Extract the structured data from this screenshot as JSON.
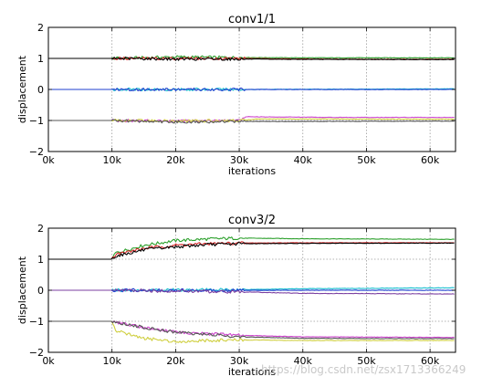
{
  "charts": [
    {
      "title": "conv1/1",
      "xlabel": "iterations",
      "ylabel": "displacement",
      "chart_data": {
        "type": "line",
        "title": "conv1/1",
        "xlabel": "iterations",
        "ylabel": "displacement",
        "xlim": [
          0,
          64000
        ],
        "ylim": [
          -2,
          2
        ],
        "xticks": [
          0,
          10000,
          20000,
          30000,
          40000,
          50000,
          60000
        ],
        "xtick_labels": [
          "0k",
          "10k",
          "20k",
          "30k",
          "40k",
          "50k",
          "60k"
        ],
        "yticks": [
          -2,
          -1,
          0,
          1,
          2
        ],
        "ytick_labels": [
          "−2",
          "−1",
          "0",
          "1",
          "2"
        ],
        "grid": true,
        "series": [
          {
            "color": "#2ca02c",
            "values": [
              [
                0,
                1.0
              ],
              [
                10000,
                1.0
              ],
              [
                20000,
                1.05
              ],
              [
                30000,
                1.03
              ],
              [
                40000,
                1.02
              ],
              [
                50000,
                1.02
              ],
              [
                64000,
                1.02
              ]
            ]
          },
          {
            "color": "#d62728",
            "values": [
              [
                0,
                1.0
              ],
              [
                10000,
                1.0
              ],
              [
                20000,
                1.0
              ],
              [
                30000,
                1.0
              ],
              [
                40000,
                0.98
              ],
              [
                50000,
                0.97
              ],
              [
                64000,
                0.97
              ]
            ]
          },
          {
            "color": "#000000",
            "values": [
              [
                0,
                1.0
              ],
              [
                10000,
                1.0
              ],
              [
                20000,
                0.98
              ],
              [
                30000,
                0.98
              ],
              [
                40000,
                0.97
              ],
              [
                64000,
                0.96
              ]
            ]
          },
          {
            "color": "#17becf",
            "values": [
              [
                0,
                0.0
              ],
              [
                10000,
                0.0
              ],
              [
                30000,
                0.0
              ],
              [
                64000,
                0.02
              ]
            ]
          },
          {
            "color": "#1f3fcf",
            "values": [
              [
                0,
                0.0
              ],
              [
                10000,
                0.0
              ],
              [
                30000,
                0.0
              ],
              [
                64000,
                0.0
              ]
            ]
          },
          {
            "color": "#cc44cc",
            "values": [
              [
                0,
                -1.0
              ],
              [
                10000,
                -1.0
              ],
              [
                20000,
                -1.02
              ],
              [
                30000,
                -1.0
              ],
              [
                31000,
                -0.88
              ],
              [
                45000,
                -0.9
              ],
              [
                64000,
                -0.9
              ]
            ]
          },
          {
            "color": "#cfcf3f",
            "values": [
              [
                0,
                -1.0
              ],
              [
                10000,
                -1.0
              ],
              [
                20000,
                -1.02
              ],
              [
                30000,
                -1.0
              ],
              [
                33000,
                -0.95
              ],
              [
                64000,
                -0.96
              ]
            ]
          },
          {
            "color": "#555555",
            "values": [
              [
                0,
                -1.0
              ],
              [
                10000,
                -1.0
              ],
              [
                20000,
                -1.05
              ],
              [
                30000,
                -1.03
              ],
              [
                40000,
                -1.03
              ],
              [
                64000,
                -1.02
              ]
            ]
          }
        ]
      }
    },
    {
      "title": "conv3/2",
      "xlabel": "iterations",
      "ylabel": "displacement",
      "chart_data": {
        "type": "line",
        "title": "conv3/2",
        "xlabel": "iterations",
        "ylabel": "displacement",
        "xlim": [
          0,
          64000
        ],
        "ylim": [
          -2,
          2
        ],
        "xticks": [
          0,
          10000,
          20000,
          30000,
          40000,
          50000,
          60000
        ],
        "xtick_labels": [
          "0k",
          "10k",
          "20k",
          "30k",
          "40k",
          "50k",
          "60k"
        ],
        "yticks": [
          -2,
          -1,
          0,
          1,
          2
        ],
        "ytick_labels": [
          "−2",
          "−1",
          "0",
          "1",
          "2"
        ],
        "grid": true,
        "series": [
          {
            "color": "#2ca02c",
            "values": [
              [
                0,
                1.0
              ],
              [
                10000,
                1.0
              ],
              [
                10500,
                1.2
              ],
              [
                15000,
                1.45
              ],
              [
                20000,
                1.6
              ],
              [
                25000,
                1.65
              ],
              [
                30000,
                1.68
              ],
              [
                40000,
                1.66
              ],
              [
                64000,
                1.64
              ]
            ]
          },
          {
            "color": "#d62728",
            "values": [
              [
                0,
                1.0
              ],
              [
                10000,
                1.0
              ],
              [
                10500,
                1.15
              ],
              [
                15000,
                1.35
              ],
              [
                20000,
                1.45
              ],
              [
                25000,
                1.5
              ],
              [
                30000,
                1.52
              ],
              [
                40000,
                1.53
              ],
              [
                64000,
                1.53
              ]
            ]
          },
          {
            "color": "#000000",
            "values": [
              [
                0,
                1.0
              ],
              [
                10000,
                1.0
              ],
              [
                10500,
                1.1
              ],
              [
                15000,
                1.3
              ],
              [
                20000,
                1.4
              ],
              [
                25000,
                1.47
              ],
              [
                30000,
                1.5
              ],
              [
                40000,
                1.51
              ],
              [
                64000,
                1.52
              ]
            ]
          },
          {
            "color": "#17becf",
            "values": [
              [
                0,
                0.0
              ],
              [
                10000,
                0.0
              ],
              [
                30000,
                0.02
              ],
              [
                40000,
                0.05
              ],
              [
                64000,
                0.08
              ]
            ]
          },
          {
            "color": "#1f3fcf",
            "values": [
              [
                0,
                0.0
              ],
              [
                10000,
                0.0
              ],
              [
                30000,
                0.0
              ],
              [
                40000,
                0.0
              ],
              [
                64000,
                0.0
              ]
            ]
          },
          {
            "color": "#7b3fa0",
            "values": [
              [
                0,
                0.0
              ],
              [
                10000,
                0.0
              ],
              [
                30000,
                -0.05
              ],
              [
                40000,
                -0.1
              ],
              [
                64000,
                -0.12
              ]
            ]
          },
          {
            "color": "#cc44cc",
            "values": [
              [
                0,
                -1.0
              ],
              [
                10000,
                -1.0
              ],
              [
                15000,
                -1.2
              ],
              [
                20000,
                -1.35
              ],
              [
                30000,
                -1.45
              ],
              [
                40000,
                -1.5
              ],
              [
                64000,
                -1.52
              ]
            ]
          },
          {
            "color": "#cfcf3f",
            "values": [
              [
                0,
                -1.0
              ],
              [
                10000,
                -1.0
              ],
              [
                10500,
                -1.3
              ],
              [
                15000,
                -1.55
              ],
              [
                20000,
                -1.65
              ],
              [
                30000,
                -1.6
              ],
              [
                40000,
                -1.62
              ],
              [
                64000,
                -1.62
              ]
            ]
          },
          {
            "color": "#555555",
            "values": [
              [
                0,
                -1.0
              ],
              [
                10000,
                -1.0
              ],
              [
                15000,
                -1.2
              ],
              [
                20000,
                -1.35
              ],
              [
                30000,
                -1.5
              ],
              [
                40000,
                -1.55
              ],
              [
                64000,
                -1.56
              ]
            ]
          }
        ]
      }
    }
  ],
  "watermark": "https://blog.csdn.net/zsx1713366249"
}
